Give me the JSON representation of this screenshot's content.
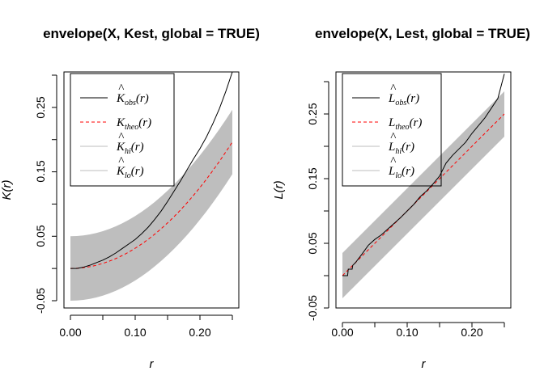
{
  "chart_data": [
    {
      "type": "line",
      "title": "envelope(X, Kest, global = TRUE)",
      "xlabel": "r",
      "ylabel": "K(r)",
      "xlim": [
        0,
        0.25
      ],
      "ylim": [
        -0.05,
        0.3
      ],
      "x_ticks": [
        "0.00",
        "0.10",
        "0.20"
      ],
      "y_ticks": [
        "-0.05",
        "0.05",
        "0.15",
        "0.25"
      ],
      "legend": {
        "position": "top-left",
        "entries": [
          {
            "base": "K",
            "hat": true,
            "sub": "obs",
            "arg": "(r)",
            "color": "#000000",
            "dash": "solid"
          },
          {
            "base": "K",
            "hat": false,
            "sub": "theo",
            "arg": "(r)",
            "color": "#ff0000",
            "dash": "dashed"
          },
          {
            "base": "K",
            "hat": true,
            "sub": "hi",
            "arg": "(r)",
            "color": "#bebebe",
            "dash": "solid"
          },
          {
            "base": "K",
            "hat": true,
            "sub": "lo",
            "arg": "(r)",
            "color": "#bebebe",
            "dash": "solid"
          }
        ]
      },
      "x": [
        0,
        0.01,
        0.02,
        0.03,
        0.04,
        0.05,
        0.06,
        0.07,
        0.08,
        0.09,
        0.1,
        0.11,
        0.12,
        0.13,
        0.14,
        0.15,
        0.16,
        0.17,
        0.18,
        0.19,
        0.2,
        0.21,
        0.22,
        0.23,
        0.24,
        0.25
      ],
      "series": [
        {
          "name": "obs",
          "color": "#000000",
          "values": [
            0.0,
            0.0,
            0.002,
            0.005,
            0.009,
            0.013,
            0.018,
            0.024,
            0.031,
            0.038,
            0.045,
            0.054,
            0.064,
            0.076,
            0.089,
            0.104,
            0.12,
            0.136,
            0.153,
            0.17,
            0.186,
            0.204,
            0.225,
            0.248,
            0.275,
            0.305
          ]
        },
        {
          "name": "theo",
          "color": "#ff0000",
          "values": [
            0.0,
            0.0003,
            0.0013,
            0.0028,
            0.005,
            0.0079,
            0.0113,
            0.0154,
            0.0201,
            0.0254,
            0.0314,
            0.038,
            0.0452,
            0.0531,
            0.0616,
            0.0707,
            0.0804,
            0.0908,
            0.1018,
            0.1134,
            0.1257,
            0.1385,
            0.1521,
            0.1662,
            0.181,
            0.1963
          ]
        },
        {
          "name": "hi",
          "color": "#bebebe",
          "values": [
            0.05,
            0.0503,
            0.0513,
            0.0528,
            0.055,
            0.0579,
            0.0613,
            0.0654,
            0.0701,
            0.0754,
            0.0814,
            0.088,
            0.0952,
            0.1031,
            0.1116,
            0.1207,
            0.1304,
            0.1408,
            0.1518,
            0.1634,
            0.1757,
            0.1885,
            0.2021,
            0.2162,
            0.231,
            0.2463
          ]
        },
        {
          "name": "lo",
          "color": "#bebebe",
          "values": [
            -0.05,
            -0.0497,
            -0.0487,
            -0.0472,
            -0.045,
            -0.0421,
            -0.0387,
            -0.0346,
            -0.0299,
            -0.0246,
            -0.0186,
            -0.012,
            -0.0048,
            0.0031,
            0.0116,
            0.0207,
            0.0304,
            0.0408,
            0.0518,
            0.0634,
            0.0757,
            0.0885,
            0.1021,
            0.1162,
            0.131,
            0.1463
          ]
        }
      ]
    },
    {
      "type": "line",
      "title": "envelope(X, Lest, global = TRUE)",
      "xlabel": "r",
      "ylabel": "L(r)",
      "xlim": [
        0,
        0.25
      ],
      "ylim": [
        -0.05,
        0.3
      ],
      "x_ticks": [
        "0.00",
        "0.10",
        "0.20"
      ],
      "y_ticks": [
        "-0.05",
        "0.05",
        "0.15",
        "0.25"
      ],
      "legend": {
        "position": "top-left",
        "entries": [
          {
            "base": "L",
            "hat": true,
            "sub": "obs",
            "arg": "(r)",
            "color": "#000000",
            "dash": "solid"
          },
          {
            "base": "L",
            "hat": false,
            "sub": "theo",
            "arg": "(r)",
            "color": "#ff0000",
            "dash": "dashed"
          },
          {
            "base": "L",
            "hat": true,
            "sub": "hi",
            "arg": "(r)",
            "color": "#bebebe",
            "dash": "solid"
          },
          {
            "base": "L",
            "hat": true,
            "sub": "lo",
            "arg": "(r)",
            "color": "#bebebe",
            "dash": "solid"
          }
        ]
      },
      "x": [
        0,
        0.008,
        0.009,
        0.015,
        0.016,
        0.02,
        0.03,
        0.04,
        0.05,
        0.06,
        0.07,
        0.08,
        0.09,
        0.1,
        0.11,
        0.12,
        0.13,
        0.14,
        0.15,
        0.16,
        0.17,
        0.18,
        0.19,
        0.2,
        0.21,
        0.22,
        0.23,
        0.24,
        0.25
      ],
      "series": [
        {
          "name": "obs",
          "color": "#000000",
          "values": [
            0.0,
            0.0,
            0.01,
            0.01,
            0.016,
            0.02,
            0.033,
            0.047,
            0.056,
            0.063,
            0.072,
            0.081,
            0.09,
            0.1,
            0.11,
            0.122,
            0.131,
            0.142,
            0.154,
            0.174,
            0.186,
            0.196,
            0.206,
            0.22,
            0.232,
            0.244,
            0.259,
            0.274,
            0.312
          ]
        },
        {
          "name": "theo",
          "color": "#ff0000",
          "values": [
            0.0,
            0.008,
            0.009,
            0.015,
            0.016,
            0.02,
            0.03,
            0.04,
            0.05,
            0.06,
            0.07,
            0.08,
            0.09,
            0.1,
            0.11,
            0.12,
            0.13,
            0.14,
            0.15,
            0.16,
            0.17,
            0.18,
            0.19,
            0.2,
            0.21,
            0.22,
            0.23,
            0.24,
            0.25
          ]
        },
        {
          "name": "hi",
          "color": "#bebebe",
          "values": [
            0.035,
            0.043,
            0.044,
            0.05,
            0.051,
            0.055,
            0.065,
            0.075,
            0.085,
            0.095,
            0.105,
            0.115,
            0.125,
            0.135,
            0.145,
            0.155,
            0.165,
            0.175,
            0.185,
            0.195,
            0.205,
            0.215,
            0.225,
            0.235,
            0.245,
            0.255,
            0.265,
            0.275,
            0.285
          ]
        },
        {
          "name": "lo",
          "color": "#bebebe",
          "values": [
            -0.035,
            -0.027,
            -0.026,
            -0.02,
            -0.019,
            -0.015,
            -0.005,
            0.005,
            0.015,
            0.025,
            0.035,
            0.045,
            0.055,
            0.065,
            0.075,
            0.085,
            0.095,
            0.105,
            0.115,
            0.125,
            0.135,
            0.145,
            0.155,
            0.165,
            0.175,
            0.185,
            0.195,
            0.205,
            0.215
          ]
        }
      ]
    }
  ]
}
